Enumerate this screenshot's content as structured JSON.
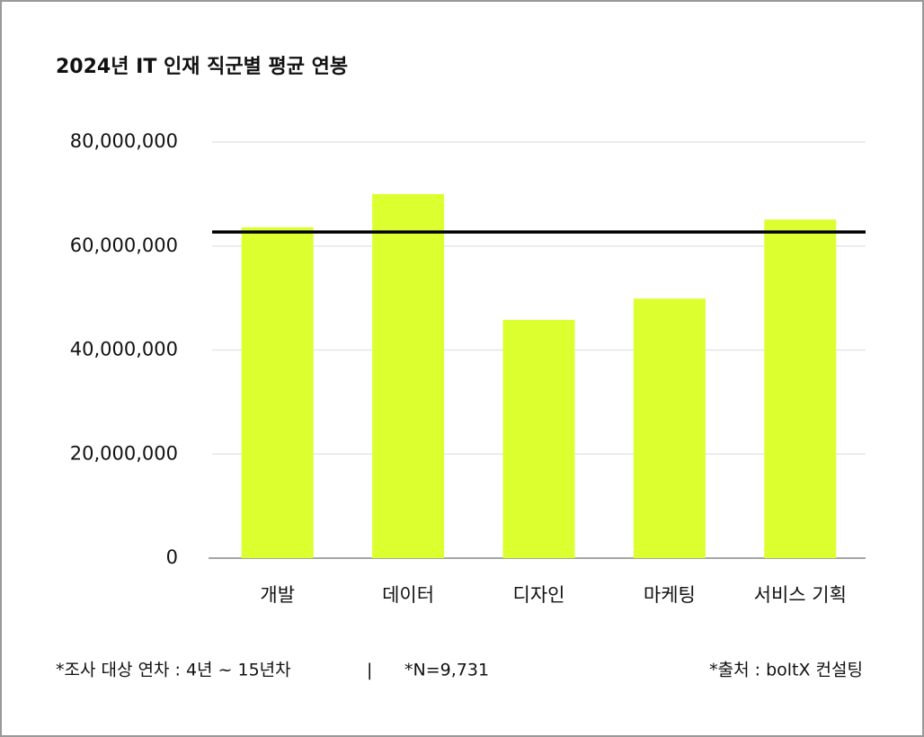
{
  "chart_data": {
    "type": "bar",
    "title": "2024년 IT 인재 직군별 평균 연봉",
    "categories": [
      "개발",
      "데이터",
      "디자인",
      "마케팅",
      "서비스 기획"
    ],
    "values": [
      63600000,
      70000000,
      45800000,
      49900000,
      65100000
    ],
    "color": "#dcff2f",
    "reference_line": {
      "value": 62700000,
      "color": "#000000"
    },
    "ylim": [
      0,
      80000000
    ],
    "yticks": [
      0,
      {
        "value": 20000000,
        "label": "20,000,000"
      },
      {
        "value": 40000000,
        "label": "40,000,000"
      },
      {
        "value": 60000000,
        "label": "60,000,000"
      },
      {
        "value": 80000000,
        "label": "80,000,000"
      }
    ],
    "grid": true
  },
  "footnotes": {
    "left": [
      "*조사 대상 연차 : 4년 ~ 15년차",
      "|",
      "*N=9,731"
    ],
    "right": "*출처 : boltX 컨설팅"
  }
}
